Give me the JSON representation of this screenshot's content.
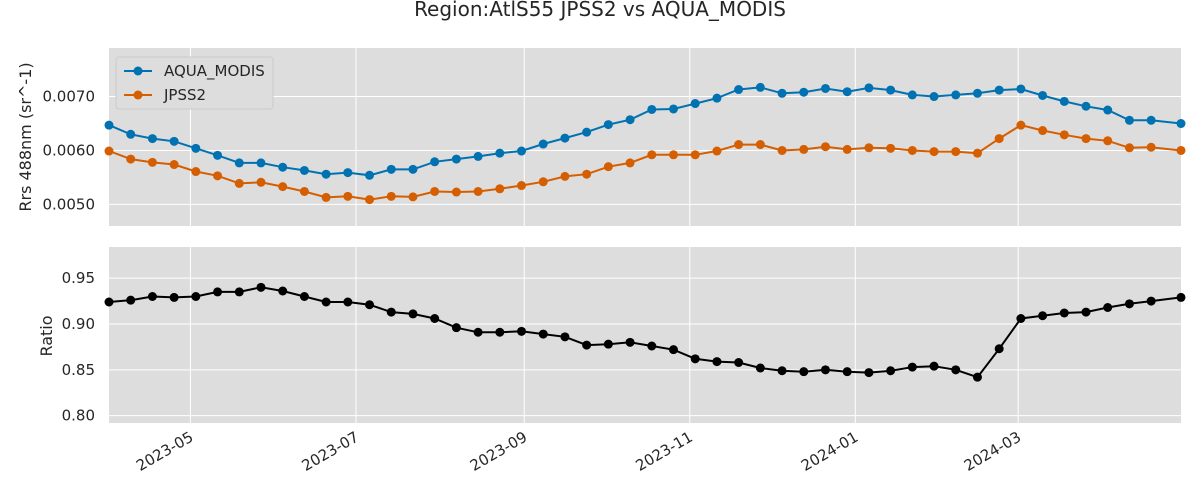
{
  "figure_title": "Region:AtlS55 JPSS2 vs AQUA_MODIS",
  "colors": {
    "AQUA_MODIS": "#0072B2",
    "JPSS2": "#D55E00",
    "ratio": "#000000",
    "panel_bg": "#dddddd",
    "grid": "#ffffff"
  },
  "x_ticks": [
    "2023-05",
    "2023-07",
    "2023-09",
    "2023-11",
    "2024-01",
    "2024-03"
  ],
  "chart_data": [
    {
      "type": "line",
      "title": "",
      "xlabel": "",
      "ylabel": "Rrs 488nm (sr^-1)",
      "xlim": [
        "2023-04-01",
        "2024-04-30"
      ],
      "ylim": [
        0.0046,
        0.0079
      ],
      "yticks": [
        "0.0050",
        "0.0060",
        "0.0070"
      ],
      "legend": "upper-left",
      "grid": true,
      "x": [
        "2023-04-01",
        "2023-04-09",
        "2023-04-17",
        "2023-04-25",
        "2023-05-03",
        "2023-05-11",
        "2023-05-19",
        "2023-05-27",
        "2023-06-04",
        "2023-06-12",
        "2023-06-20",
        "2023-06-28",
        "2023-07-06",
        "2023-07-14",
        "2023-07-22",
        "2023-07-30",
        "2023-08-07",
        "2023-08-15",
        "2023-08-23",
        "2023-08-31",
        "2023-09-08",
        "2023-09-16",
        "2023-09-24",
        "2023-10-02",
        "2023-10-10",
        "2023-10-18",
        "2023-10-26",
        "2023-11-03",
        "2023-11-11",
        "2023-11-19",
        "2023-11-27",
        "2023-12-05",
        "2023-12-13",
        "2023-12-21",
        "2023-12-29",
        "2024-01-06",
        "2024-01-14",
        "2024-01-22",
        "2024-01-30",
        "2024-02-07",
        "2024-02-15",
        "2024-02-23",
        "2024-03-02",
        "2024-03-10",
        "2024-03-18",
        "2024-03-26",
        "2024-04-03",
        "2024-04-11",
        "2024-04-19",
        "2024-04-30"
      ],
      "series": [
        {
          "name": "AQUA_MODIS",
          "values": [
            0.00647,
            0.0063,
            0.00622,
            0.00617,
            0.00604,
            0.00591,
            0.00577,
            0.00577,
            0.00569,
            0.00563,
            0.00556,
            0.00559,
            0.00554,
            0.00565,
            0.00565,
            0.00579,
            0.00584,
            0.00589,
            0.00595,
            0.00599,
            0.00612,
            0.00623,
            0.00634,
            0.00648,
            0.00657,
            0.00676,
            0.00677,
            0.00687,
            0.00697,
            0.00713,
            0.00717,
            0.00706,
            0.00708,
            0.00715,
            0.00709,
            0.00716,
            0.00712,
            0.00703,
            0.007,
            0.00703,
            0.00706,
            0.00712,
            0.00714,
            0.00702,
            0.00691,
            0.00682,
            0.00675,
            0.00656,
            0.00656,
            0.0065
          ]
        },
        {
          "name": "JPSS2",
          "values": [
            0.00599,
            0.00584,
            0.00578,
            0.00574,
            0.00561,
            0.00553,
            0.00539,
            0.00541,
            0.00533,
            0.00524,
            0.00513,
            0.00515,
            0.00509,
            0.00515,
            0.00514,
            0.00524,
            0.00523,
            0.00524,
            0.00529,
            0.00535,
            0.00542,
            0.00552,
            0.00556,
            0.0057,
            0.00577,
            0.00592,
            0.00592,
            0.00592,
            0.00599,
            0.00611,
            0.00611,
            0.006,
            0.00602,
            0.00607,
            0.00602,
            0.00605,
            0.00604,
            0.006,
            0.00598,
            0.00598,
            0.00595,
            0.00622,
            0.00647,
            0.00637,
            0.00629,
            0.00622,
            0.00618,
            0.00605,
            0.00606,
            0.006
          ]
        }
      ]
    },
    {
      "type": "line",
      "title": "",
      "xlabel": "",
      "ylabel": "Ratio",
      "xlim": [
        "2023-04-01",
        "2024-04-30"
      ],
      "ylim": [
        0.792,
        0.984
      ],
      "yticks": [
        "0.80",
        "0.85",
        "0.90",
        "0.95"
      ],
      "grid": true,
      "x": [
        "2023-04-01",
        "2023-04-09",
        "2023-04-17",
        "2023-04-25",
        "2023-05-03",
        "2023-05-11",
        "2023-05-19",
        "2023-05-27",
        "2023-06-04",
        "2023-06-12",
        "2023-06-20",
        "2023-06-28",
        "2023-07-06",
        "2023-07-14",
        "2023-07-22",
        "2023-07-30",
        "2023-08-07",
        "2023-08-15",
        "2023-08-23",
        "2023-08-31",
        "2023-09-08",
        "2023-09-16",
        "2023-09-24",
        "2023-10-02",
        "2023-10-10",
        "2023-10-18",
        "2023-10-26",
        "2023-11-03",
        "2023-11-11",
        "2023-11-19",
        "2023-11-27",
        "2023-12-05",
        "2023-12-13",
        "2023-12-21",
        "2023-12-29",
        "2024-01-06",
        "2024-01-14",
        "2024-01-22",
        "2024-01-30",
        "2024-02-07",
        "2024-02-15",
        "2024-02-23",
        "2024-03-02",
        "2024-03-10",
        "2024-03-18",
        "2024-03-26",
        "2024-04-03",
        "2024-04-11",
        "2024-04-19",
        "2024-04-30"
      ],
      "series": [
        {
          "values": [
            0.924,
            0.926,
            0.93,
            0.929,
            0.93,
            0.935,
            0.935,
            0.94,
            0.936,
            0.93,
            0.924,
            0.924,
            0.921,
            0.913,
            0.911,
            0.906,
            0.896,
            0.891,
            0.891,
            0.892,
            0.889,
            0.886,
            0.877,
            0.878,
            0.88,
            0.876,
            0.872,
            0.862,
            0.859,
            0.858,
            0.852,
            0.849,
            0.848,
            0.85,
            0.848,
            0.847,
            0.849,
            0.853,
            0.854,
            0.85,
            0.842,
            0.873,
            0.906,
            0.909,
            0.912,
            0.913,
            0.918,
            0.922,
            0.925,
            0.929
          ]
        }
      ]
    }
  ]
}
